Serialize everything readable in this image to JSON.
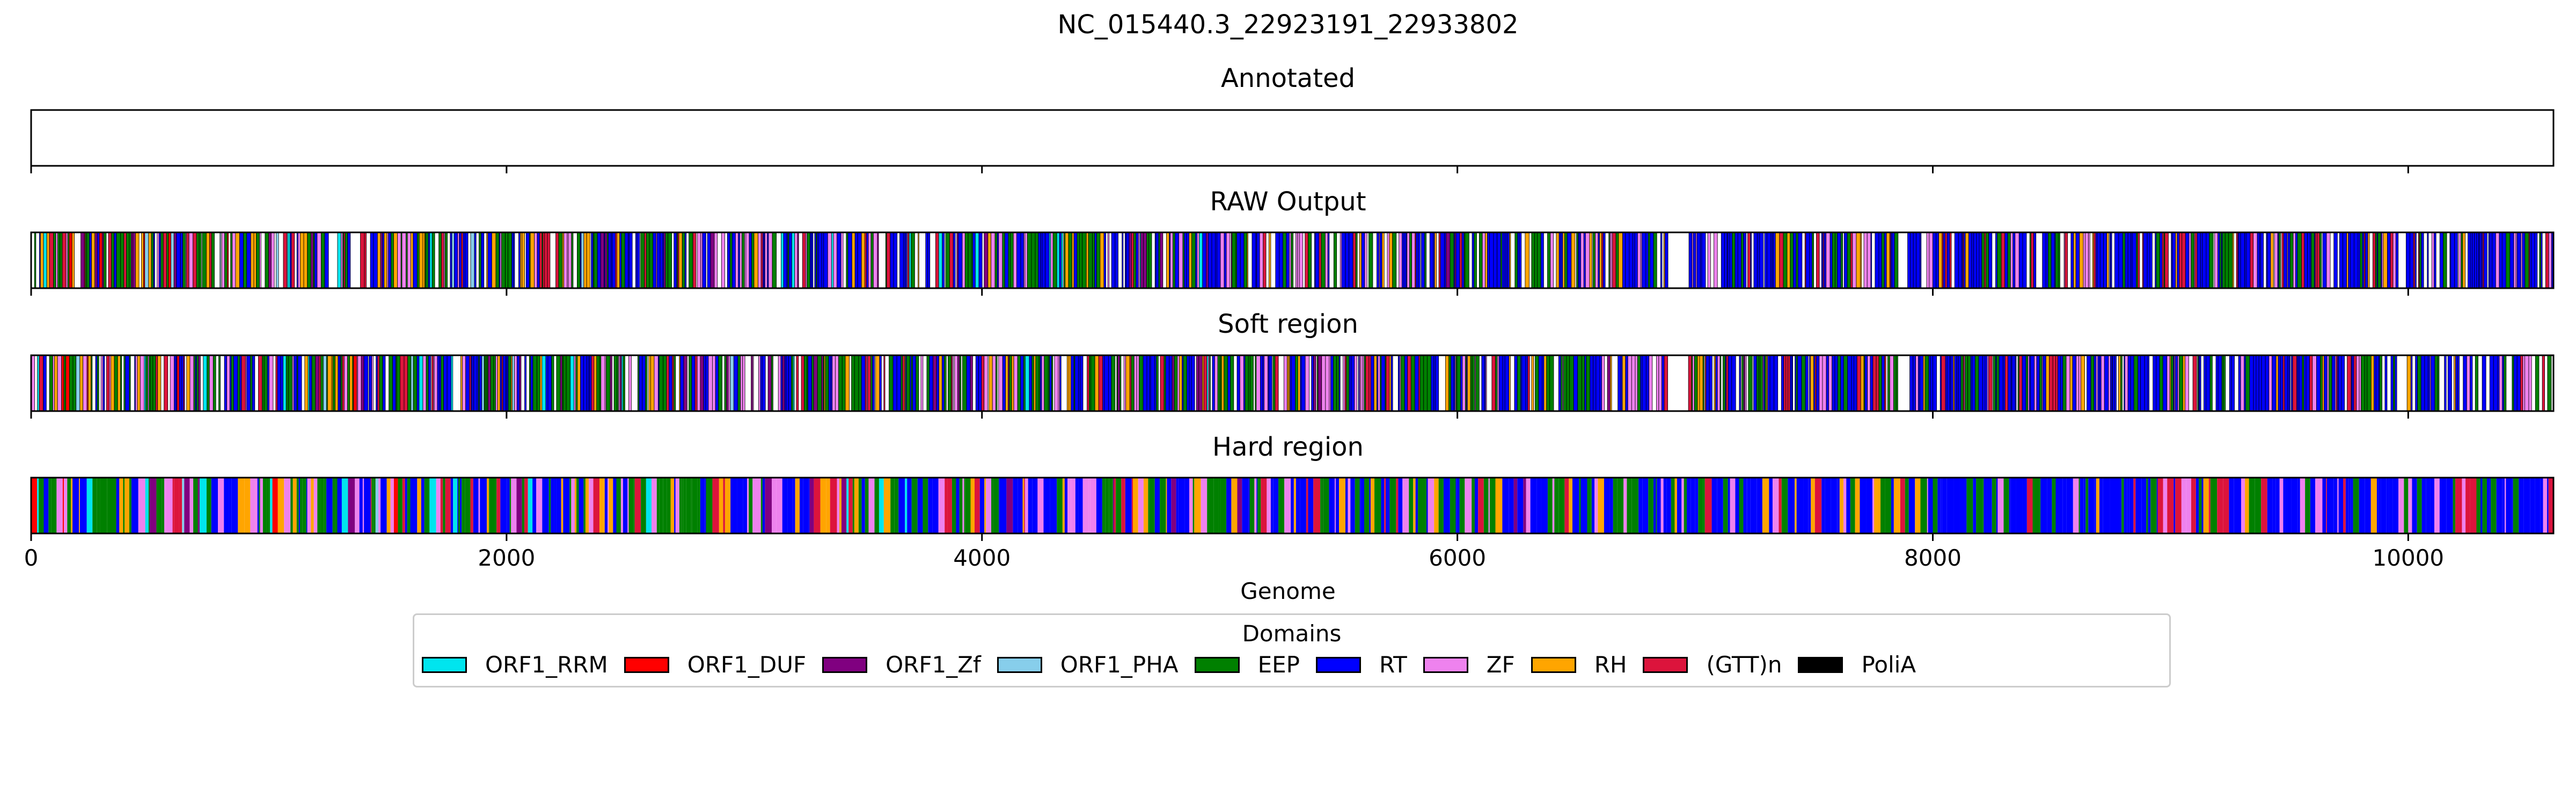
{
  "figure": {
    "title": "NC_015440.3_22923191_22933802"
  },
  "legend": {
    "title": "Domains",
    "items": [
      {
        "label": "ORF1_RRM",
        "color": "#00e5ee"
      },
      {
        "label": "ORF1_DUF",
        "color": "#ff0000"
      },
      {
        "label": "ORF1_Zf",
        "color": "#800080"
      },
      {
        "label": "ORF1_PHA",
        "color": "#87ceeb"
      },
      {
        "label": "EEP",
        "color": "#008000"
      },
      {
        "label": "RT",
        "color": "#0000ff"
      },
      {
        "label": "ZF",
        "color": "#ee82ee"
      },
      {
        "label": "RH",
        "color": "#ffa500"
      },
      {
        "label": "(GTT)n",
        "color": "#dc143c"
      },
      {
        "label": "PoliA",
        "color": "#000000"
      }
    ]
  },
  "chart_data": {
    "type": "heatmap",
    "xlabel": "Genome",
    "xlim": [
      0,
      10611
    ],
    "xticks": [
      0,
      2000,
      4000,
      6000,
      8000,
      10000
    ],
    "tick_labels": [
      "0",
      "2000",
      "4000",
      "6000",
      "8000",
      "10000"
    ],
    "tracks": [
      {
        "title": "Annotated",
        "segments": []
      },
      {
        "title": "RAW Output",
        "pattern": "dense-per-base",
        "gaps": [
          [
            6884,
            6960
          ],
          [
            7850,
            7890
          ],
          [
            9950,
            9985
          ]
        ]
      },
      {
        "title": "Soft region",
        "pattern": "dense-per-base",
        "gaps": [
          [
            6884,
            6960
          ],
          [
            7850,
            7890
          ],
          [
            9950,
            9985
          ]
        ]
      },
      {
        "title": "Hard region",
        "pattern": "dense-per-base",
        "gaps": []
      }
    ]
  }
}
